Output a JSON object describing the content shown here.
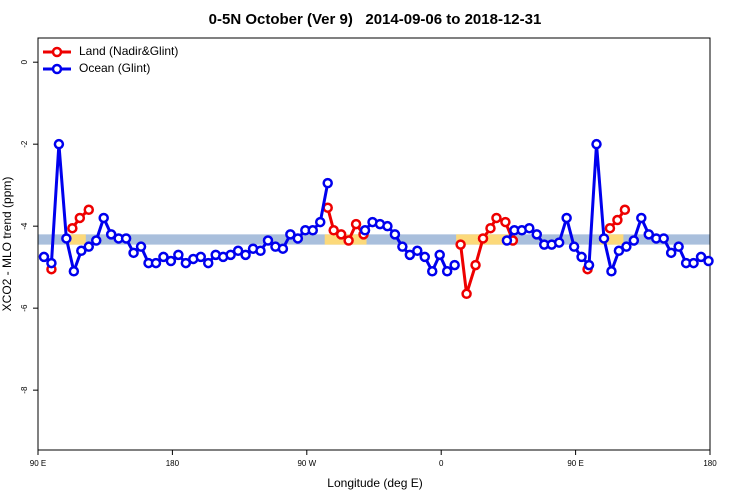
{
  "chart_data": {
    "type": "line",
    "title": "0-5N October (Ver 9)   2014-09-06 to 2018-12-31",
    "x_label": "Longitude (deg E)",
    "y_label": "XCO2 - MLO trend (ppm)",
    "xlim": [
      90,
      540
    ],
    "ylim": [
      -9.46,
      0.59
    ],
    "xticks": [
      {
        "value": 90,
        "label": "90 E"
      },
      {
        "value": 180,
        "label": "180"
      },
      {
        "value": 270,
        "label": "90 W"
      },
      {
        "value": 360,
        "label": "0"
      },
      {
        "value": 450,
        "label": "90 E"
      },
      {
        "value": 540,
        "label": "180"
      }
    ],
    "yticks": [
      0,
      -2,
      -4,
      -6,
      -8
    ],
    "legend": "top-left",
    "band": {
      "ylim": [
        -4.45,
        -4.2
      ],
      "color": "#a9bfdc",
      "highlight_color": "#fcd97a",
      "highlight_x": [
        [
          111,
          122
        ],
        [
          282,
          310
        ],
        [
          370,
          405
        ],
        [
          466,
          482
        ]
      ]
    },
    "series": [
      {
        "name": "Land (Nadir&Glint)",
        "color": "#ee0000",
        "x": [
          99,
          106,
          113,
          118,
          124,
          200,
          284,
          288,
          293,
          298,
          303,
          308,
          340,
          373,
          377,
          383,
          388,
          393,
          397,
          403,
          408,
          430,
          458,
          465,
          473,
          478,
          483
        ],
        "values": [
          -5.05,
          null,
          -4.05,
          -3.8,
          -3.6,
          null,
          -3.55,
          -4.1,
          -4.2,
          -4.35,
          -3.95,
          -4.2,
          null,
          -4.45,
          -5.65,
          -4.95,
          -4.3,
          -4.05,
          -3.8,
          -3.9,
          -4.35,
          null,
          -5.05,
          null,
          -4.05,
          -3.85,
          -3.6
        ]
      },
      {
        "name": "Ocean (Glint)",
        "color": "#0000ee",
        "x": [
          94,
          99,
          104,
          109,
          114,
          119,
          124,
          129,
          134,
          139,
          144,
          149,
          154,
          159,
          164,
          169,
          174,
          179,
          184,
          189,
          194,
          199,
          204,
          209,
          214,
          219,
          224,
          229,
          234,
          239,
          244,
          249,
          254,
          259,
          264,
          269,
          274,
          279,
          284,
          289,
          309,
          314,
          319,
          324,
          329,
          334,
          339,
          344,
          349,
          354,
          359,
          364,
          369,
          374,
          404,
          409,
          414,
          419,
          424,
          429,
          434,
          439,
          444,
          449,
          454,
          459,
          464,
          469,
          474,
          479,
          484,
          489,
          494,
          499,
          504,
          509,
          514,
          519,
          524,
          529,
          534,
          539
        ],
        "values": [
          -4.75,
          -4.9,
          -2.0,
          -4.3,
          -5.1,
          -4.6,
          -4.5,
          -4.35,
          -3.8,
          -4.2,
          -4.3,
          -4.3,
          -4.65,
          -4.5,
          -4.9,
          -4.9,
          -4.75,
          -4.85,
          -4.7,
          -4.9,
          -4.8,
          -4.75,
          -4.9,
          -4.7,
          -4.75,
          -4.7,
          -4.6,
          -4.7,
          -4.55,
          -4.6,
          -4.35,
          -4.5,
          -4.55,
          -4.2,
          -4.3,
          -4.1,
          -4.1,
          -3.9,
          -2.95,
          null,
          -4.1,
          -3.9,
          -3.95,
          -4.0,
          -4.2,
          -4.5,
          -4.7,
          -4.6,
          -4.75,
          -5.1,
          -4.7,
          -5.1,
          -4.95,
          null,
          -4.35,
          -4.1,
          -4.1,
          -4.05,
          -4.2,
          -4.45,
          -4.45,
          -4.4,
          -3.8,
          -4.5,
          -4.75,
          -4.95,
          -2.0,
          -4.3,
          -5.1,
          -4.6,
          -4.5,
          -4.35,
          -3.8,
          -4.2,
          -4.3,
          -4.3,
          -4.65,
          -4.5,
          -4.9,
          -4.9,
          -4.75,
          -4.85
        ]
      }
    ]
  }
}
